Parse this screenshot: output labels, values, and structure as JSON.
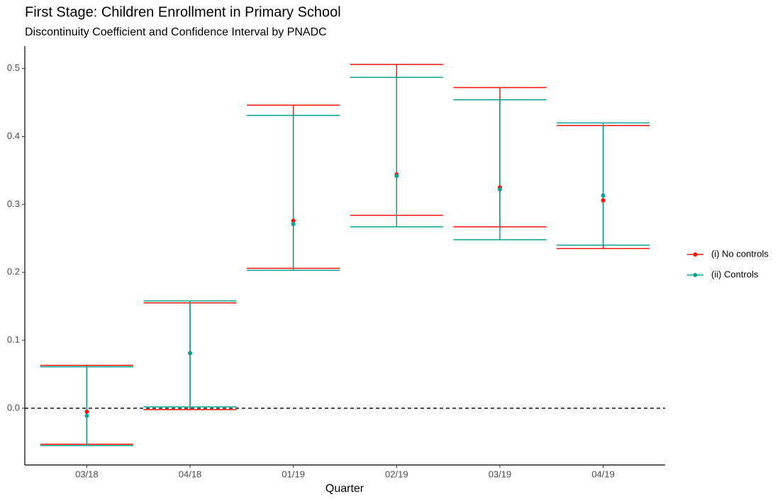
{
  "chart_data": {
    "type": "errorbar",
    "title": "First Stage: Children Enrollment in Primary School",
    "subtitle": "Discontinuity Coefficient and Confidence Interval by PNADC",
    "x_label": "Quarter",
    "categories": [
      "03/18",
      "04/18",
      "01/19",
      "02/19",
      "03/19",
      "04/19"
    ],
    "series": [
      {
        "name": "(i) No controls",
        "color": "#f8150d",
        "values": [
          -0.005,
          0.081,
          0.276,
          0.344,
          0.325,
          0.306
        ],
        "lower": [
          -0.053,
          -0.002,
          0.206,
          0.284,
          0.267,
          0.235
        ],
        "upper": [
          0.063,
          0.155,
          0.446,
          0.506,
          0.472,
          0.416
        ]
      },
      {
        "name": "(ii) Controls",
        "color": "#0fa38f",
        "values": [
          -0.011,
          0.081,
          0.271,
          0.342,
          0.322,
          0.313
        ],
        "lower": [
          -0.055,
          0.002,
          0.203,
          0.267,
          0.248,
          0.24
        ],
        "upper": [
          0.061,
          0.158,
          0.431,
          0.487,
          0.454,
          0.42
        ]
      }
    ],
    "ylim": [
      -0.0835,
      0.533
    ],
    "yticks": [
      {
        "value": 0,
        "label": "0.0"
      },
      0.1,
      0.2,
      0.3,
      0.4,
      0.5
    ],
    "reference_line": 0,
    "legend": "right"
  }
}
